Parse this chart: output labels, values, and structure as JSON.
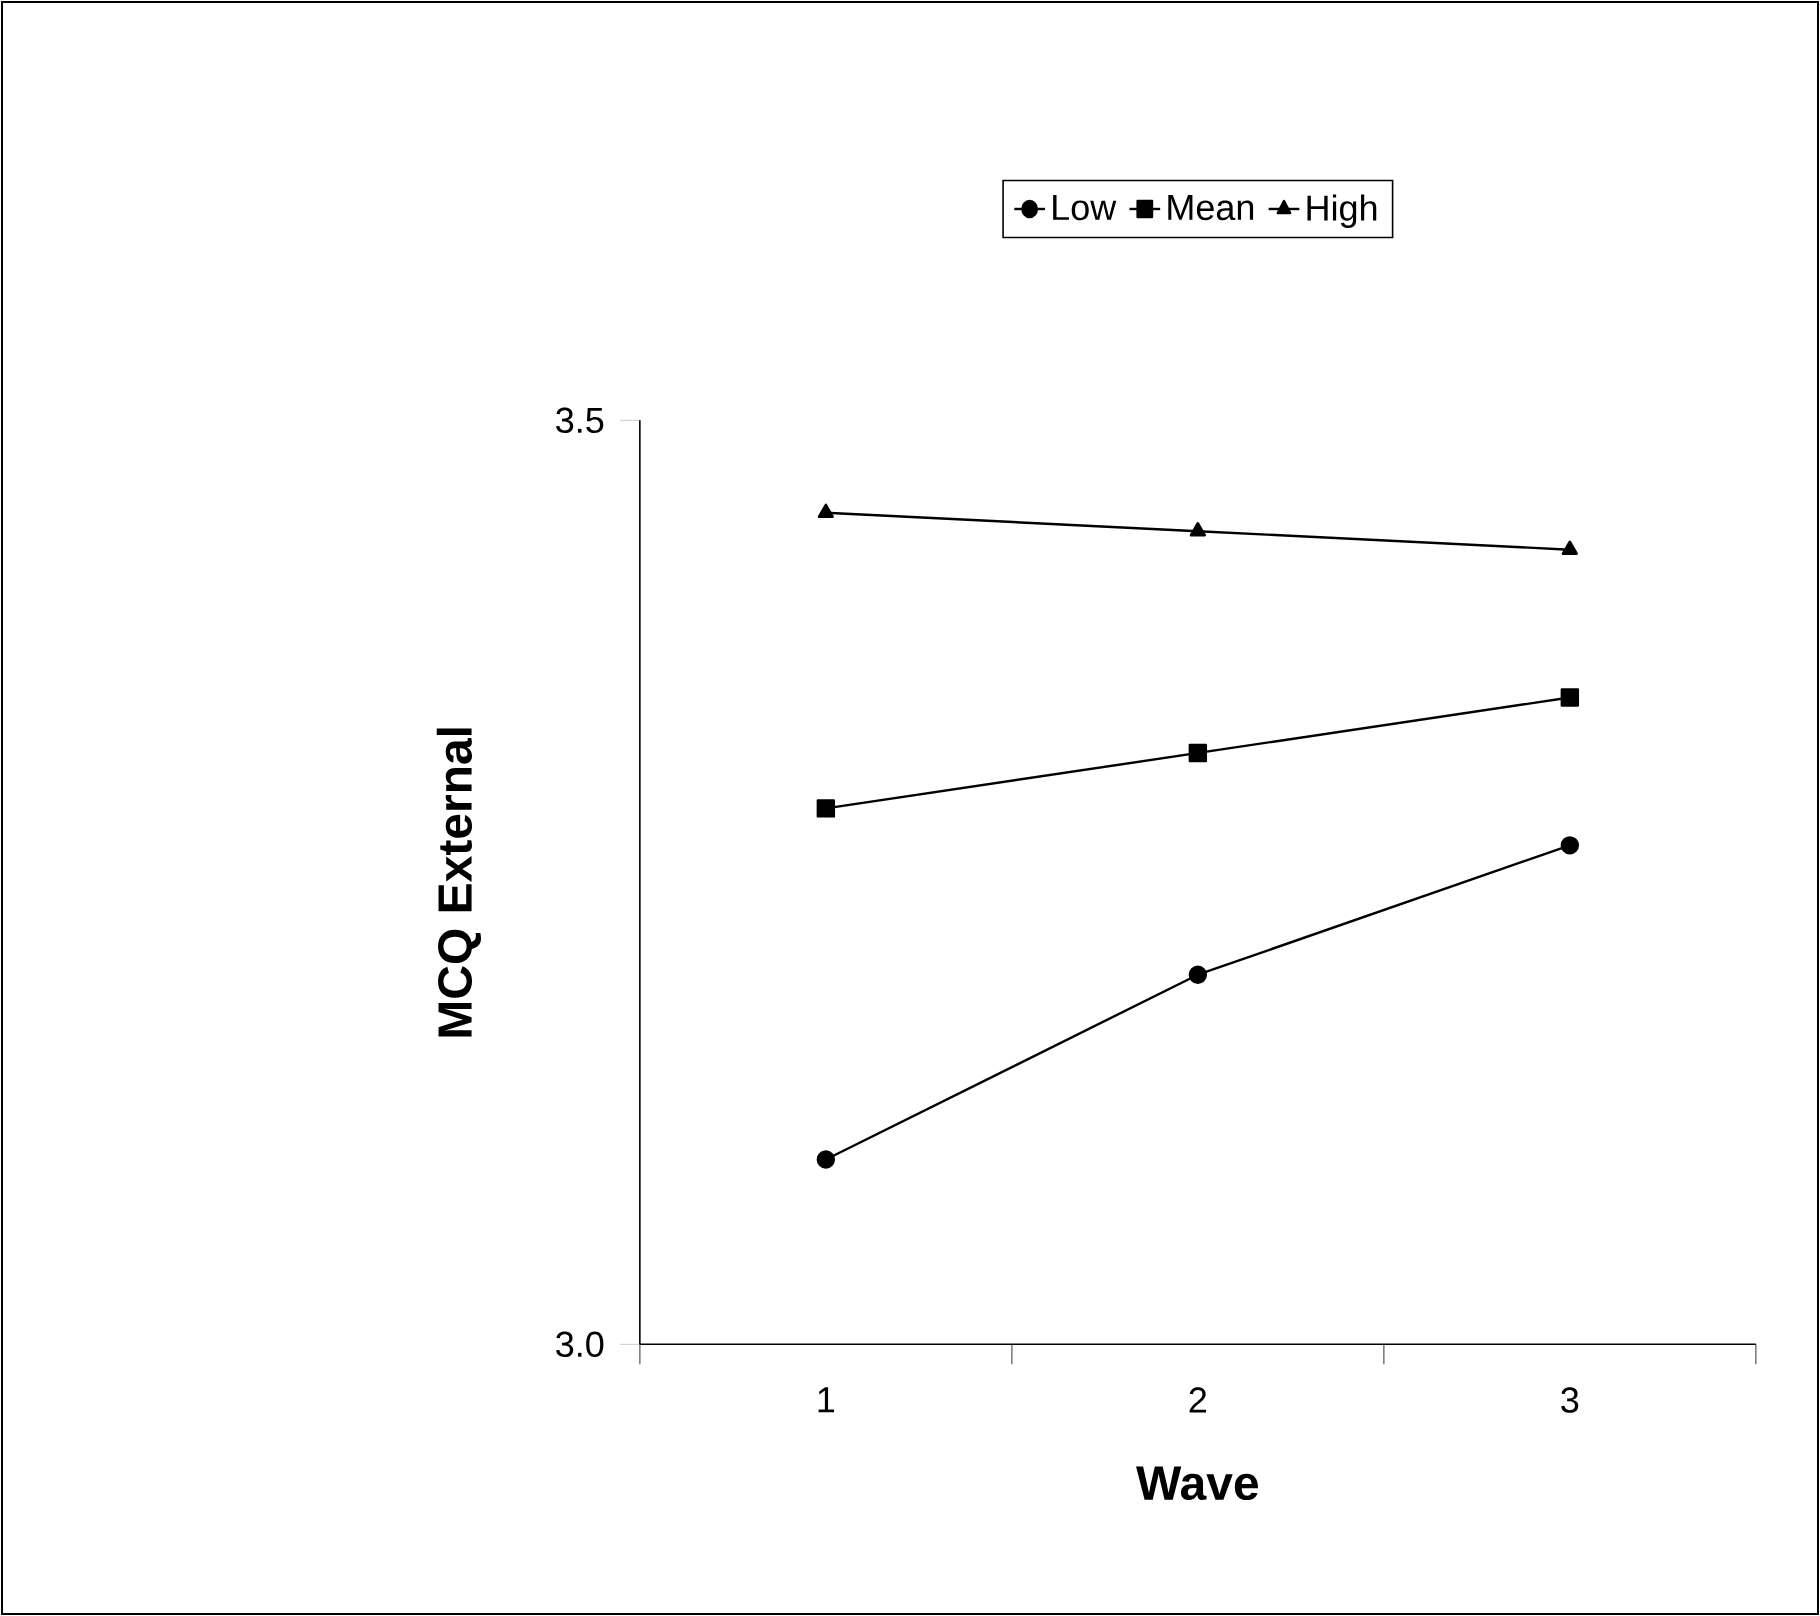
{
  "chart_data": {
    "type": "line",
    "xlabel": "Wave",
    "ylabel": "MCQ External",
    "categories": [
      "1",
      "2",
      "3"
    ],
    "ylim": [
      3.0,
      3.5
    ],
    "yticks": [
      {
        "value": 3.0,
        "label": "3.0"
      },
      {
        "value": 3.5,
        "label": "3.5"
      }
    ],
    "legend": "top",
    "grid": false,
    "line_style": "solid",
    "series": [
      {
        "name": "Low",
        "color": "#000000",
        "marker": "circle",
        "values": [
          3.1,
          3.2,
          3.27
        ]
      },
      {
        "name": "Mean",
        "color": "#000000",
        "marker": "square",
        "values": [
          3.29,
          3.32,
          3.35
        ]
      },
      {
        "name": "High",
        "color": "#000000",
        "marker": "triangle",
        "values": [
          3.45,
          3.44,
          3.43
        ]
      }
    ]
  }
}
